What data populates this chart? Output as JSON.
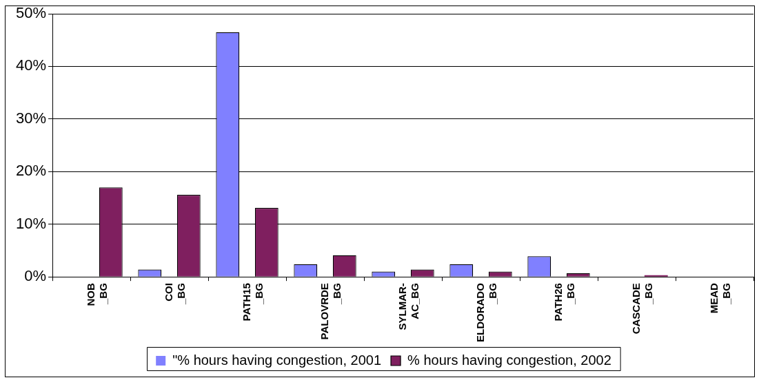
{
  "chart_data": {
    "type": "bar",
    "categories": [
      "NOB\n_BG",
      "COI\n_BG",
      "PATH15\n_BG",
      "PALOVRDE\n_BG",
      "SYLMAR-\nAC_BG",
      "ELDORADO\n_BG",
      "PATH26\n_BG",
      "CASCADE\n_BG",
      "MEAD\n_BG"
    ],
    "series": [
      {
        "name": "\"% hours having congestion, 2001",
        "color": "#8080ff",
        "values": [
          0,
          1.4,
          46.5,
          2.4,
          1.0,
          2.4,
          3.9,
          0,
          0
        ]
      },
      {
        "name": "% hours having congestion, 2002",
        "color": "#7f1f5f",
        "values": [
          17.0,
          15.6,
          13.1,
          4.1,
          1.4,
          1.0,
          0.7,
          0.3,
          0
        ]
      }
    ],
    "ylim": [
      0,
      50
    ],
    "yticks": [
      {
        "value": 0,
        "label": "0%"
      },
      {
        "value": 10,
        "label": "10%"
      },
      {
        "value": 20,
        "label": "20%"
      },
      {
        "value": 30,
        "label": "30%"
      },
      {
        "value": 40,
        "label": "40%"
      },
      {
        "value": 50,
        "label": "50%"
      }
    ],
    "grid": "y",
    "legend": "bottom"
  }
}
